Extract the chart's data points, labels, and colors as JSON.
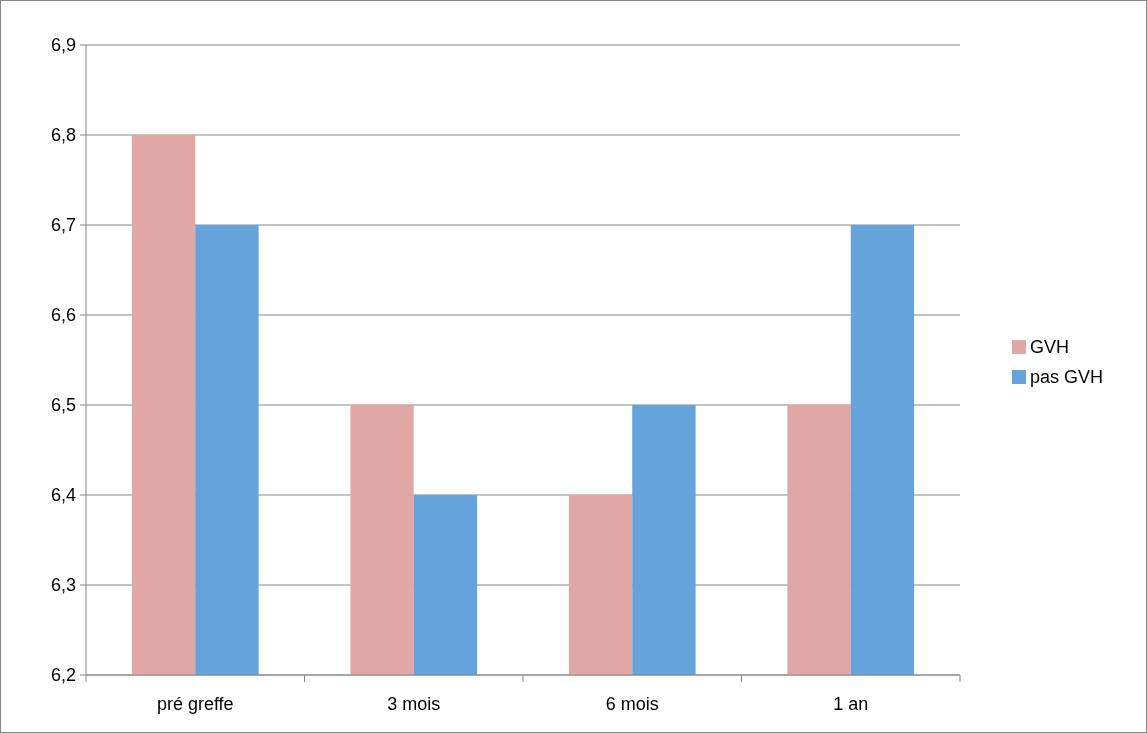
{
  "chart_data": {
    "type": "bar",
    "categories": [
      "pré greffe",
      "3 mois",
      "6 mois",
      "1 an"
    ],
    "series": [
      {
        "name": "GVH",
        "color": "#e0a7a5",
        "values": [
          6.8,
          6.5,
          6.4,
          6.5
        ]
      },
      {
        "name": "pas GVH",
        "color": "#65a3dd",
        "values": [
          6.7,
          6.4,
          6.5,
          6.7
        ]
      }
    ],
    "ylim": [
      6.2,
      6.9
    ],
    "yticks": [
      {
        "value": 6.2,
        "label": "6,2"
      },
      {
        "value": 6.3,
        "label": "6,3"
      },
      {
        "value": 6.4,
        "label": "6,4"
      },
      {
        "value": 6.5,
        "label": "6,5"
      },
      {
        "value": 6.6,
        "label": "6,6"
      },
      {
        "value": 6.7,
        "label": "6,7"
      },
      {
        "value": 6.8,
        "label": "6,8"
      },
      {
        "value": 6.9,
        "label": "6,9"
      }
    ],
    "grid": "y",
    "legend": "right"
  }
}
